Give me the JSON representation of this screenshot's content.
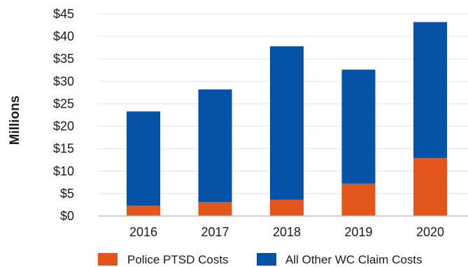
{
  "chart_data": {
    "type": "bar",
    "stacked": true,
    "categories": [
      "2016",
      "2017",
      "2018",
      "2019",
      "2020"
    ],
    "series": [
      {
        "name": "Police PTSD Costs",
        "color": "#e2561b",
        "values": [
          2.3,
          3.1,
          3.6,
          7.2,
          12.9
        ]
      },
      {
        "name": "All Other WC Claim Costs",
        "color": "#0452a6",
        "values": [
          21.0,
          25.1,
          34.2,
          25.4,
          30.3
        ]
      }
    ],
    "ylabel": "Millions",
    "ylim": [
      0,
      45
    ],
    "yticks": [
      "$0",
      "$5",
      "$10",
      "$15",
      "$20",
      "$25",
      "$30",
      "$35",
      "$40",
      "$45"
    ],
    "grid": true,
    "legend": "bottom"
  }
}
